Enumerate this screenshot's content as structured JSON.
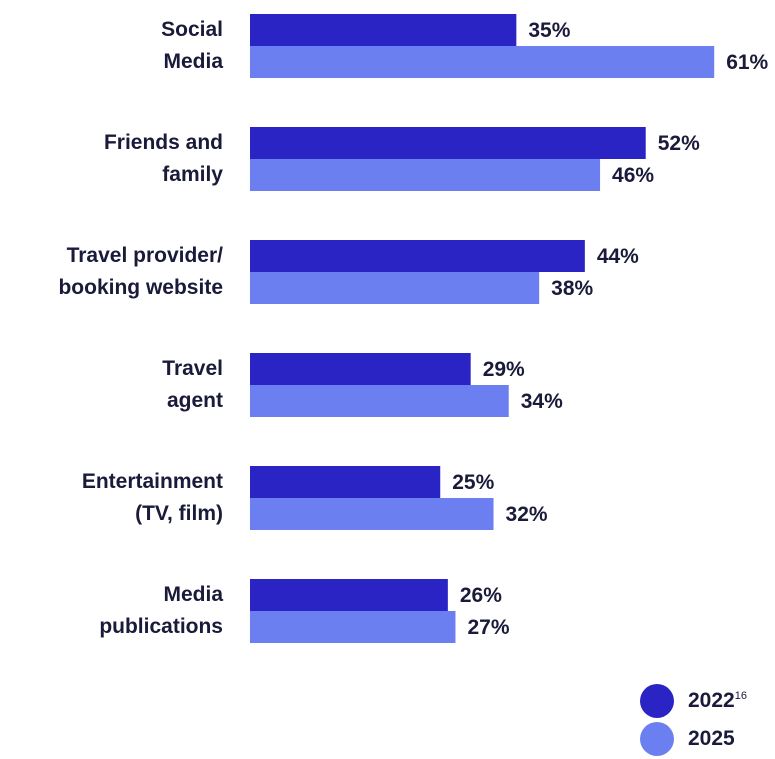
{
  "chart_data": {
    "type": "bar",
    "orientation": "horizontal",
    "categories": [
      [
        "Social",
        "Media"
      ],
      [
        "Friends and",
        "family"
      ],
      [
        "Travel provider/",
        "booking website"
      ],
      [
        "Travel",
        "agent"
      ],
      [
        "Entertainment",
        "(TV, film)"
      ],
      [
        "Media",
        "publications"
      ]
    ],
    "series": [
      {
        "name": "2022",
        "color": "#2a24c4",
        "values": [
          35,
          52,
          44,
          29,
          25,
          26
        ]
      },
      {
        "name": "2025",
        "color": "#6b7ff0",
        "values": [
          61,
          46,
          38,
          34,
          32,
          27
        ]
      }
    ],
    "value_suffix": "%",
    "xlim": [
      0,
      100
    ],
    "legend_placement": "bottom-right",
    "legend_footnote": "16",
    "grid": false
  }
}
